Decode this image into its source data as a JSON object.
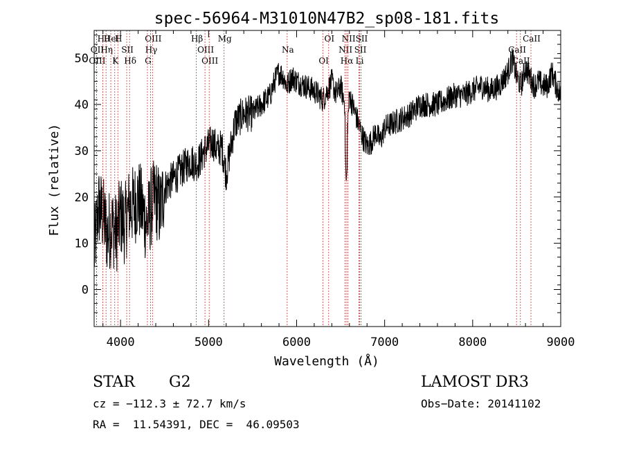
{
  "chart_data": {
    "type": "line",
    "title": "spec-56964-M31010N47B2_sp08-181.fits",
    "xlabel": "Wavelength (Å)",
    "ylabel": "Flux (relative)",
    "xlim": [
      3700,
      9000
    ],
    "ylim": [
      -8,
      56
    ],
    "xticks": [
      4000,
      5000,
      6000,
      7000,
      8000,
      9000
    ],
    "yticks": [
      0,
      10,
      20,
      30,
      40,
      50
    ],
    "series": [
      {
        "name": "flux",
        "x": [
          3700,
          3750,
          3800,
          3850,
          3900,
          3950,
          4000,
          4050,
          4100,
          4150,
          4200,
          4250,
          4300,
          4350,
          4400,
          4450,
          4500,
          4600,
          4700,
          4800,
          4850,
          4900,
          4950,
          5000,
          5050,
          5100,
          5150,
          5200,
          5300,
          5400,
          5500,
          5600,
          5700,
          5750,
          5800,
          5850,
          5890,
          5950,
          6000,
          6100,
          6200,
          6300,
          6350,
          6400,
          6450,
          6500,
          6550,
          6563,
          6600,
          6650,
          6700,
          6750,
          6800,
          6850,
          6900,
          6950,
          7000,
          7100,
          7200,
          7300,
          7400,
          7500,
          7600,
          7700,
          7800,
          7900,
          8000,
          8100,
          8200,
          8300,
          8400,
          8450,
          8500,
          8550,
          8600,
          8650,
          8700,
          8750,
          8800,
          8850,
          8900,
          8950,
          9000
        ],
        "y": [
          8,
          18,
          16,
          12,
          14,
          12,
          16,
          14,
          18,
          18,
          20,
          17,
          14,
          18,
          20,
          17,
          22,
          24,
          26,
          28,
          27,
          28,
          30,
          31,
          32,
          30,
          31,
          25,
          36,
          38,
          38,
          40,
          42,
          45,
          47,
          46,
          44,
          46,
          45,
          44,
          43,
          41,
          43,
          45,
          42,
          44,
          40,
          31,
          42,
          39,
          36,
          33,
          31,
          32,
          34,
          32,
          35,
          36,
          37,
          38,
          40,
          40,
          40,
          41,
          42,
          42,
          43,
          44,
          43,
          44,
          47,
          50,
          46,
          44,
          48,
          46,
          44,
          45,
          44,
          44,
          47,
          44,
          42
        ],
        "noise_note": "densely sampled noisy spectrum"
      }
    ],
    "lines": [
      {
        "label": "Hθ",
        "wave": 3798
      },
      {
        "label": "OII",
        "wave": 3727
      },
      {
        "label": "OIII",
        "wave": 3727
      },
      {
        "label": "HeI",
        "wave": 3889
      },
      {
        "label": "Hη",
        "wave": 3835
      },
      {
        "label": "K",
        "wave": 3934
      },
      {
        "label": "H",
        "wave": 3969
      },
      {
        "label": "SII",
        "wave": 4070
      },
      {
        "label": "Hδ",
        "wave": 4102
      },
      {
        "label": "OIII",
        "wave": 4363
      },
      {
        "label": "Hγ",
        "wave": 4341
      },
      {
        "label": "G",
        "wave": 4305
      },
      {
        "label": "Hβ",
        "wave": 4861
      },
      {
        "label": "OIII",
        "wave": 4959
      },
      {
        "label": "OIII",
        "wave": 5007
      },
      {
        "label": "Mg",
        "wave": 5176
      },
      {
        "label": "Na",
        "wave": 5893
      },
      {
        "label": "OI",
        "wave": 6300
      },
      {
        "label": "OI",
        "wave": 6364
      },
      {
        "label": "NII",
        "wave": 6548
      },
      {
        "label": "Hα",
        "wave": 6563
      },
      {
        "label": "NII",
        "wave": 6583
      },
      {
        "label": "SII",
        "wave": 6716
      },
      {
        "label": "Li",
        "wave": 6708
      },
      {
        "label": "SII",
        "wave": 6731
      },
      {
        "label": "CaII",
        "wave": 8498
      },
      {
        "label": "CaII",
        "wave": 8542
      },
      {
        "label": "CaII",
        "wave": 8662
      }
    ]
  },
  "footer": {
    "class_label": "STAR",
    "subclass": "G2",
    "survey": "LAMOST DR3",
    "cz_text": "cz = −112.3 ± 72.7 km/s",
    "obs_date_text": "Obs−Date: 20141102",
    "coords_text": "RA =  11.54391, DEC =  46.09503"
  },
  "colors": {
    "axis": "#000000",
    "spectrum": "#000000",
    "line_marker": "#cc3333"
  }
}
